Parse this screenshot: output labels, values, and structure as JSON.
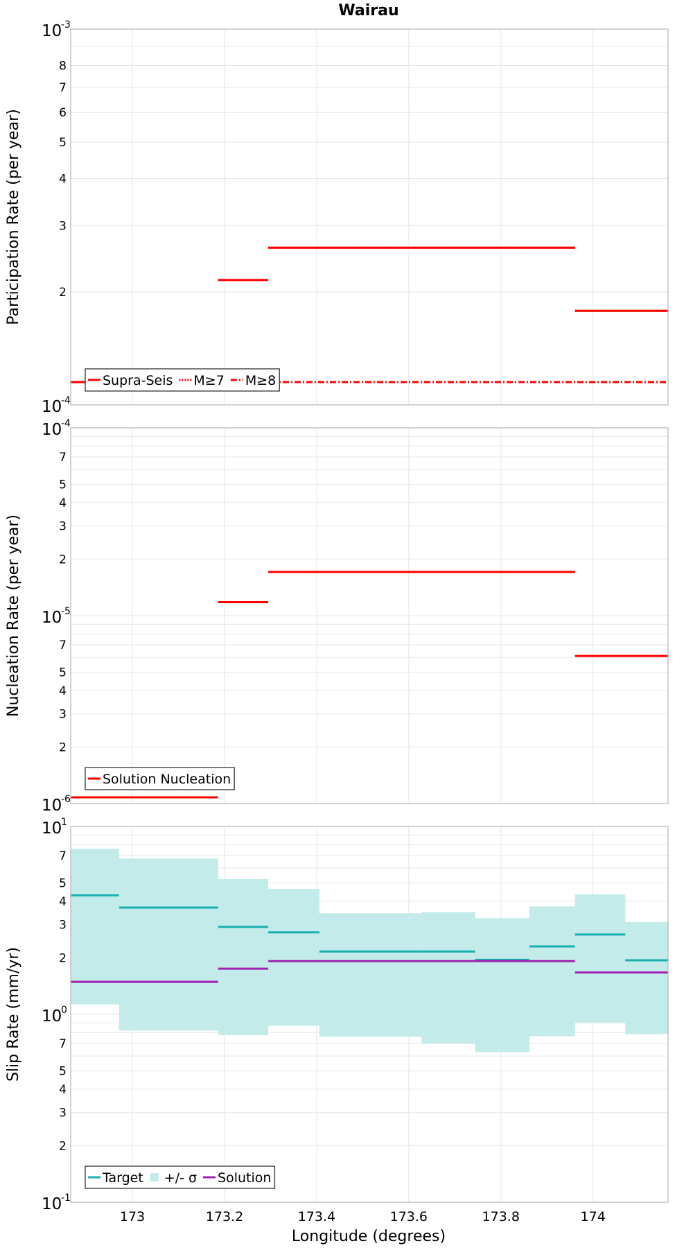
{
  "chart_data": {
    "title": "Wairau",
    "xlabel": "Longitude (degrees)",
    "xlim": [
      172.866,
      174.163
    ],
    "xticks": [
      "173",
      "173.2",
      "173.4",
      "173.6",
      "173.8",
      "174"
    ],
    "panels": [
      {
        "type": "line",
        "ylabel": "Participation Rate (per year)",
        "yscale": "log",
        "ylim": [
          0.0001,
          0.001
        ],
        "decade_ticks": [
          {
            "base": "10",
            "exp": "-4"
          },
          {
            "base": "10",
            "exp": "-3"
          }
        ],
        "minor_tick_labels": [
          "2",
          "3",
          "4",
          "5",
          "6",
          "7",
          "8"
        ],
        "legend": {
          "placement": "bottom-left",
          "entries": [
            "Supra-Seis",
            "M≥7",
            "M≥8"
          ]
        },
        "series": [
          {
            "name": "Supra-Seis",
            "color": "#ff0000",
            "style": "solid",
            "segments": [
              [
                172.866,
                173.186,
                0.000115
              ],
              [
                173.186,
                173.295,
                0.000215
              ],
              [
                173.295,
                173.961,
                0.000262
              ],
              [
                173.961,
                174.163,
                0.000178
              ]
            ]
          },
          {
            "name": "M≥7",
            "color": "#ff0000",
            "style": "dotted",
            "segments": [
              [
                172.866,
                173.186,
                0.000115
              ],
              [
                173.186,
                173.295,
                0.000215
              ],
              [
                173.295,
                173.961,
                0.000262
              ],
              [
                173.961,
                174.163,
                0.000178
              ]
            ]
          },
          {
            "name": "M≥8",
            "color": "#ff0000",
            "style": "dashdot",
            "segments": [
              [
                172.866,
                174.163,
                0.000115
              ]
            ]
          }
        ]
      },
      {
        "type": "line",
        "ylabel": "Nucleation Rate (per year)",
        "yscale": "log",
        "ylim": [
          1e-06,
          0.0001
        ],
        "decade_ticks": [
          {
            "base": "10",
            "exp": "-6"
          },
          {
            "base": "10",
            "exp": "-5"
          },
          {
            "base": "10",
            "exp": "-4"
          }
        ],
        "minor_tick_labels": [
          "2",
          "3",
          "4",
          "5",
          "7"
        ],
        "legend": {
          "placement": "bottom-left",
          "entries": [
            "Solution Nucleation"
          ]
        },
        "series": [
          {
            "name": "Solution Nucleation",
            "color": "#ff0000",
            "style": "solid",
            "segments": [
              [
                172.866,
                173.186,
                1.08e-06
              ],
              [
                173.186,
                173.295,
                1.18e-05
              ],
              [
                173.295,
                173.961,
                1.71e-05
              ],
              [
                173.961,
                174.163,
                6.1e-06
              ]
            ]
          }
        ]
      },
      {
        "type": "line",
        "ylabel": "Slip Rate (mm/yr)",
        "yscale": "log",
        "ylim": [
          0.1,
          10
        ],
        "decade_ticks": [
          {
            "base": "10",
            "exp": "-1"
          },
          {
            "base": "10",
            "exp": "0"
          },
          {
            "base": "10",
            "exp": "1"
          }
        ],
        "minor_tick_labels": [
          "2",
          "3",
          "4",
          "5",
          "7"
        ],
        "legend": {
          "placement": "bottom-left",
          "entries": [
            "Target",
            "+/- σ",
            "Solution"
          ]
        },
        "band": {
          "name": "+/- σ",
          "color": "#c2ebe9",
          "segments": [
            [
              172.866,
              172.971,
              1.13,
              7.6
            ],
            [
              172.971,
              173.186,
              0.82,
              6.75
            ],
            [
              173.186,
              173.295,
              0.775,
              5.25
            ],
            [
              173.295,
              173.406,
              0.87,
              4.65
            ],
            [
              173.406,
              173.628,
              0.76,
              3.45
            ],
            [
              173.628,
              173.744,
              0.7,
              3.5
            ],
            [
              173.744,
              173.862,
              0.63,
              3.25
            ],
            [
              173.862,
              173.961,
              0.765,
              3.75
            ],
            [
              173.961,
              174.07,
              0.905,
              4.35
            ],
            [
              174.07,
              174.163,
              0.785,
              3.1
            ]
          ]
        },
        "series": [
          {
            "name": "Target",
            "color": "#17b0b0",
            "segments": [
              [
                172.866,
                172.971,
                4.3
              ],
              [
                172.971,
                173.186,
                3.7
              ],
              [
                173.186,
                173.295,
                2.92
              ],
              [
                173.295,
                173.406,
                2.73
              ],
              [
                173.406,
                173.744,
                2.16
              ],
              [
                173.744,
                173.862,
                1.95
              ],
              [
                173.862,
                173.961,
                2.3
              ],
              [
                173.961,
                174.07,
                2.66
              ],
              [
                174.07,
                174.163,
                1.94
              ]
            ]
          },
          {
            "name": "Solution",
            "color": "#a020b0",
            "segments": [
              [
                172.866,
                173.186,
                1.49
              ],
              [
                173.186,
                173.295,
                1.75
              ],
              [
                173.295,
                173.961,
                1.92
              ],
              [
                173.961,
                174.163,
                1.67
              ]
            ]
          }
        ]
      }
    ]
  }
}
